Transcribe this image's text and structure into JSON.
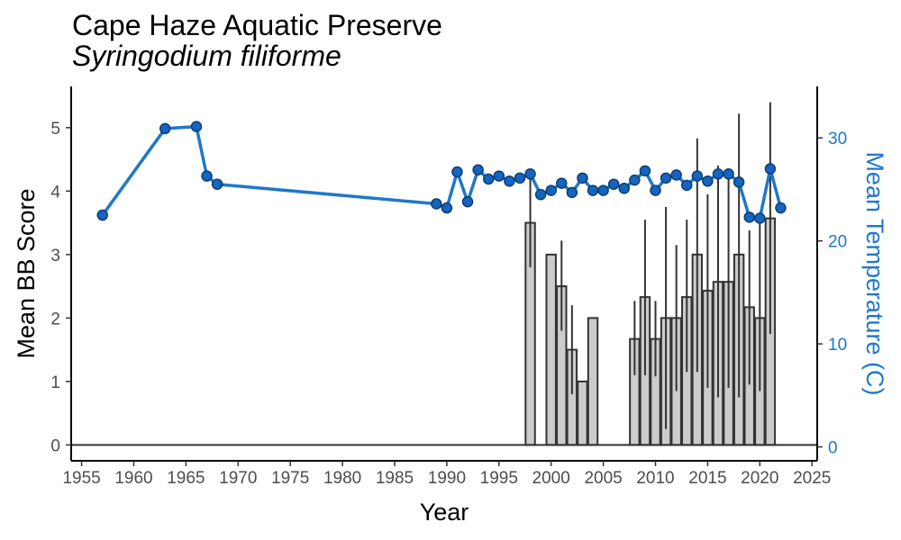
{
  "chart_data": {
    "type": "bar+line",
    "title": "Cape Haze Aquatic Preserve",
    "subtitle": "Syringodium filiforme",
    "xlabel": "Year",
    "ylabel": "Mean BB Score",
    "y2label": "Mean Temperature (C)",
    "xlim": [
      1954,
      2025.5
    ],
    "ylim": [
      -0.25,
      5.65
    ],
    "y2lim": [
      -1.35,
      35
    ],
    "x_ticks": [
      1955,
      1960,
      1965,
      1970,
      1975,
      1980,
      1985,
      1990,
      1995,
      2000,
      2005,
      2010,
      2015,
      2020,
      2025
    ],
    "y_ticks": [
      0,
      1,
      2,
      3,
      4,
      5
    ],
    "y2_ticks": [
      0,
      10,
      20,
      30
    ],
    "colors": {
      "bar_fill": "#cccccc",
      "bar_stroke": "#333333",
      "line": "#1f78c8",
      "point": "#1565c0",
      "axis_right": "#1f78c8"
    },
    "grid": false,
    "bars": [
      {
        "x": 1998,
        "y": 3.5,
        "lo": 2.8,
        "hi": 4.25
      },
      {
        "x": 2000,
        "y": 3.0,
        "lo": null,
        "hi": null
      },
      {
        "x": 2001,
        "y": 2.5,
        "lo": 1.8,
        "hi": 3.22
      },
      {
        "x": 2002,
        "y": 1.5,
        "lo": 0.8,
        "hi": 2.2
      },
      {
        "x": 2003,
        "y": 1.0,
        "lo": null,
        "hi": null
      },
      {
        "x": 2004,
        "y": 2.0,
        "lo": null,
        "hi": null
      },
      {
        "x": 2008,
        "y": 1.67,
        "lo": 1.1,
        "hi": 2.27
      },
      {
        "x": 2009,
        "y": 2.33,
        "lo": 1.1,
        "hi": 3.55
      },
      {
        "x": 2010,
        "y": 1.67,
        "lo": 1.08,
        "hi": 2.27
      },
      {
        "x": 2011,
        "y": 2.0,
        "lo": 0.25,
        "hi": 3.75
      },
      {
        "x": 2012,
        "y": 2.0,
        "lo": 0.85,
        "hi": 3.15
      },
      {
        "x": 2013,
        "y": 2.33,
        "lo": 1.15,
        "hi": 3.55
      },
      {
        "x": 2014,
        "y": 3.0,
        "lo": 1.15,
        "hi": 4.83
      },
      {
        "x": 2015,
        "y": 2.43,
        "lo": 0.9,
        "hi": 3.95
      },
      {
        "x": 2016,
        "y": 2.57,
        "lo": 0.75,
        "hi": 4.4
      },
      {
        "x": 2017,
        "y": 2.57,
        "lo": 0.9,
        "hi": 4.25
      },
      {
        "x": 2018,
        "y": 3.0,
        "lo": 0.75,
        "hi": 5.22
      },
      {
        "x": 2019,
        "y": 2.17,
        "lo": 0.95,
        "hi": 3.38
      },
      {
        "x": 2020,
        "y": 2.0,
        "lo": 0.85,
        "hi": 3.55
      },
      {
        "x": 2021,
        "y": 3.57,
        "lo": 1.75,
        "hi": 5.4
      }
    ],
    "temperature": [
      {
        "x": 1957,
        "y": 22.5
      },
      {
        "x": 1963,
        "y": 30.9
      },
      {
        "x": 1966,
        "y": 31.1
      },
      {
        "x": 1967,
        "y": 26.3
      },
      {
        "x": 1968,
        "y": 25.5
      },
      {
        "x": 1989,
        "y": 23.6
      },
      {
        "x": 1990,
        "y": 23.2
      },
      {
        "x": 1991,
        "y": 26.7
      },
      {
        "x": 1992,
        "y": 23.8
      },
      {
        "x": 1993,
        "y": 26.9
      },
      {
        "x": 1994,
        "y": 26.0
      },
      {
        "x": 1995,
        "y": 26.3
      },
      {
        "x": 1996,
        "y": 25.8
      },
      {
        "x": 1997,
        "y": 26.1
      },
      {
        "x": 1998,
        "y": 26.5
      },
      {
        "x": 1999,
        "y": 24.5
      },
      {
        "x": 2000,
        "y": 24.9
      },
      {
        "x": 2001,
        "y": 25.6
      },
      {
        "x": 2002,
        "y": 24.7
      },
      {
        "x": 2003,
        "y": 26.1
      },
      {
        "x": 2004,
        "y": 24.9
      },
      {
        "x": 2005,
        "y": 24.9
      },
      {
        "x": 2006,
        "y": 25.5
      },
      {
        "x": 2007,
        "y": 25.1
      },
      {
        "x": 2008,
        "y": 25.9
      },
      {
        "x": 2009,
        "y": 26.8
      },
      {
        "x": 2010,
        "y": 24.9
      },
      {
        "x": 2011,
        "y": 26.1
      },
      {
        "x": 2012,
        "y": 26.4
      },
      {
        "x": 2013,
        "y": 25.4
      },
      {
        "x": 2014,
        "y": 26.3
      },
      {
        "x": 2015,
        "y": 25.8
      },
      {
        "x": 2016,
        "y": 26.5
      },
      {
        "x": 2017,
        "y": 26.5
      },
      {
        "x": 2018,
        "y": 25.7
      },
      {
        "x": 2019,
        "y": 22.3
      },
      {
        "x": 2020,
        "y": 22.2
      },
      {
        "x": 2021,
        "y": 27.0
      },
      {
        "x": 2022,
        "y": 23.2
      }
    ]
  }
}
